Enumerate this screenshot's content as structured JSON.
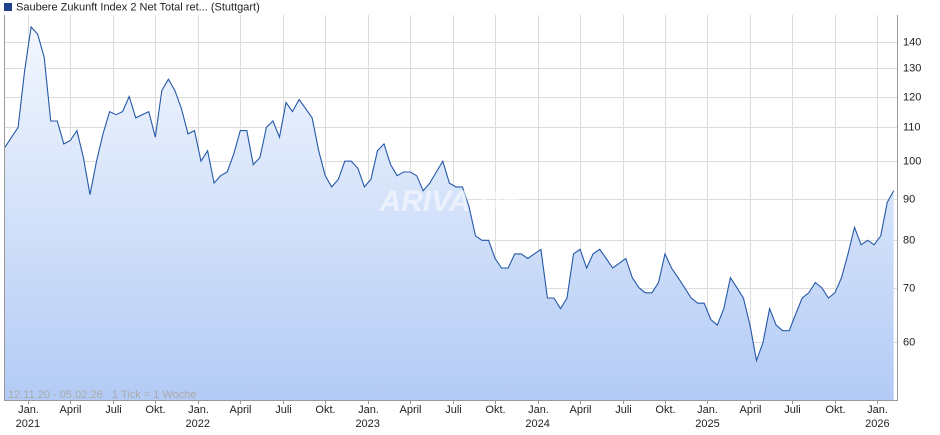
{
  "chart_data": {
    "type": "line",
    "series": [
      {
        "name": "Saubere Zukunft Index 2 Net Total ret... (Stuttgart)",
        "color": "#2558a8",
        "values": [
          104,
          107,
          110,
          129,
          146,
          143,
          134,
          112,
          112,
          105,
          106,
          109,
          101,
          91,
          100,
          108,
          115,
          114,
          115,
          120,
          113,
          114,
          115,
          107,
          122,
          126,
          122,
          116,
          108,
          109,
          100,
          103,
          94,
          96,
          97,
          102,
          109,
          109,
          99,
          101,
          110,
          112,
          107,
          118,
          115,
          119,
          116,
          113,
          103,
          96,
          93,
          95,
          100,
          100,
          98,
          93,
          95,
          103,
          105,
          99,
          96,
          97,
          97,
          96,
          92,
          94,
          97,
          100,
          94,
          93,
          93,
          88,
          81,
          80,
          80,
          76,
          74,
          74,
          77,
          77,
          76,
          77,
          78,
          68,
          68,
          66,
          68,
          77,
          78,
          74,
          77,
          78,
          76,
          74,
          75,
          76,
          72,
          70,
          69,
          69,
          71,
          77,
          74,
          72,
          70,
          68,
          67,
          67,
          64,
          63,
          66,
          72,
          70,
          68,
          63,
          57,
          60,
          66,
          63,
          62,
          62,
          65,
          68,
          69,
          71,
          70,
          68,
          69,
          72,
          77,
          83,
          79,
          80,
          79,
          81,
          89,
          92
        ]
      }
    ],
    "x": [
      0,
      2,
      4,
      6,
      8,
      10,
      12,
      14,
      16,
      18,
      20,
      22,
      24,
      26,
      28,
      30,
      32,
      34,
      36,
      38,
      40,
      42,
      44,
      46,
      48,
      50,
      52,
      54,
      56,
      58,
      60,
      62,
      64,
      66,
      68,
      70,
      72,
      74,
      76,
      78,
      80,
      82,
      84,
      86,
      88,
      90,
      92,
      94,
      96,
      98,
      100,
      102,
      104,
      106,
      108,
      110,
      112,
      114,
      116,
      118,
      120,
      122,
      124,
      126,
      128,
      130,
      132,
      134,
      136,
      138,
      140,
      142,
      144,
      146,
      148,
      150,
      152,
      154,
      156,
      158,
      160,
      162,
      164,
      166,
      168,
      170,
      172,
      174,
      176,
      178,
      180,
      182,
      184,
      186,
      188,
      190,
      192,
      194,
      196,
      198,
      200,
      202,
      204,
      206,
      208,
      210,
      212,
      214,
      216,
      218,
      220,
      222,
      224,
      226,
      228,
      230,
      232,
      234,
      236,
      238,
      240,
      242,
      244,
      246,
      248,
      250,
      252,
      254,
      256,
      258,
      260,
      262,
      264,
      266,
      268,
      270,
      272
    ],
    "xlim": [
      0,
      273
    ],
    "xticks": [
      {
        "value": 7,
        "label": "Jan."
      },
      {
        "value": 20,
        "label": "April"
      },
      {
        "value": 33,
        "label": "Juli"
      },
      {
        "value": 46,
        "label": "Okt."
      },
      {
        "value": 59,
        "label": "Jan."
      },
      {
        "value": 72,
        "label": "April"
      },
      {
        "value": 85,
        "label": "Juli"
      },
      {
        "value": 98,
        "label": "Okt."
      },
      {
        "value": 111,
        "label": "Jan."
      },
      {
        "value": 124,
        "label": "April"
      },
      {
        "value": 137,
        "label": "Juli"
      },
      {
        "value": 150,
        "label": "Okt."
      },
      {
        "value": 163,
        "label": "Jan."
      },
      {
        "value": 176,
        "label": "April"
      },
      {
        "value": 189,
        "label": "Juli"
      },
      {
        "value": 202,
        "label": "Okt."
      },
      {
        "value": 215,
        "label": "Jan."
      },
      {
        "value": 228,
        "label": "April"
      },
      {
        "value": 241,
        "label": "Juli"
      },
      {
        "value": 254,
        "label": "Okt."
      },
      {
        "value": 267,
        "label": "Jan."
      }
    ],
    "year_ticks": [
      {
        "value": 7,
        "label": "2021"
      },
      {
        "value": 59,
        "label": "2022"
      },
      {
        "value": 111,
        "label": "2023"
      },
      {
        "value": 163,
        "label": "2024"
      },
      {
        "value": 215,
        "label": "2025"
      },
      {
        "value": 267,
        "label": "2026"
      }
    ],
    "ylim": [
      51,
      151
    ],
    "yticks": [
      60,
      70,
      80,
      90,
      100,
      110,
      120,
      130,
      140
    ],
    "log_y": true,
    "grid": true,
    "date_range": "12.11.20 - 05.02.26",
    "tick_note": "1 Tick = 1 Woche",
    "watermark": "ARIVA.DE"
  }
}
